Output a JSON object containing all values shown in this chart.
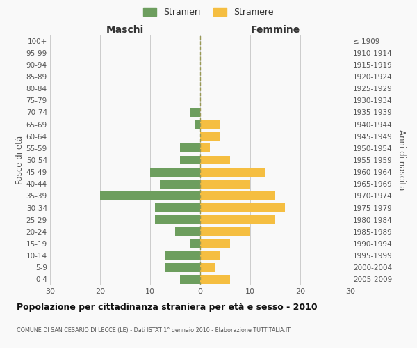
{
  "age_groups": [
    "100+",
    "95-99",
    "90-94",
    "85-89",
    "80-84",
    "75-79",
    "70-74",
    "65-69",
    "60-64",
    "55-59",
    "50-54",
    "45-49",
    "40-44",
    "35-39",
    "30-34",
    "25-29",
    "20-24",
    "15-19",
    "10-14",
    "5-9",
    "0-4"
  ],
  "birth_years": [
    "≤ 1909",
    "1910-1914",
    "1915-1919",
    "1920-1924",
    "1925-1929",
    "1930-1934",
    "1935-1939",
    "1940-1944",
    "1945-1949",
    "1950-1954",
    "1955-1959",
    "1960-1964",
    "1965-1969",
    "1970-1974",
    "1975-1979",
    "1980-1984",
    "1985-1989",
    "1990-1994",
    "1995-1999",
    "2000-2004",
    "2005-2009"
  ],
  "males": [
    0,
    0,
    0,
    0,
    0,
    0,
    2,
    1,
    0,
    4,
    4,
    10,
    8,
    20,
    9,
    9,
    5,
    2,
    7,
    7,
    4
  ],
  "females": [
    0,
    0,
    0,
    0,
    0,
    0,
    0,
    4,
    4,
    2,
    6,
    13,
    10,
    15,
    17,
    15,
    10,
    6,
    4,
    3,
    6
  ],
  "male_color": "#6d9e5e",
  "female_color": "#f5be41",
  "title": "Popolazione per cittadinanza straniera per età e sesso - 2010",
  "subtitle": "COMUNE DI SAN CESARIO DI LECCE (LE) - Dati ISTAT 1° gennaio 2010 - Elaborazione TUTTITALIA.IT",
  "xlabel_left": "Maschi",
  "xlabel_right": "Femmine",
  "ylabel_left": "Fasce di età",
  "ylabel_right": "Anni di nascita",
  "legend_male": "Stranieri",
  "legend_female": "Straniere",
  "xlim": 30,
  "background_color": "#f9f9f9",
  "bar_height": 0.75
}
